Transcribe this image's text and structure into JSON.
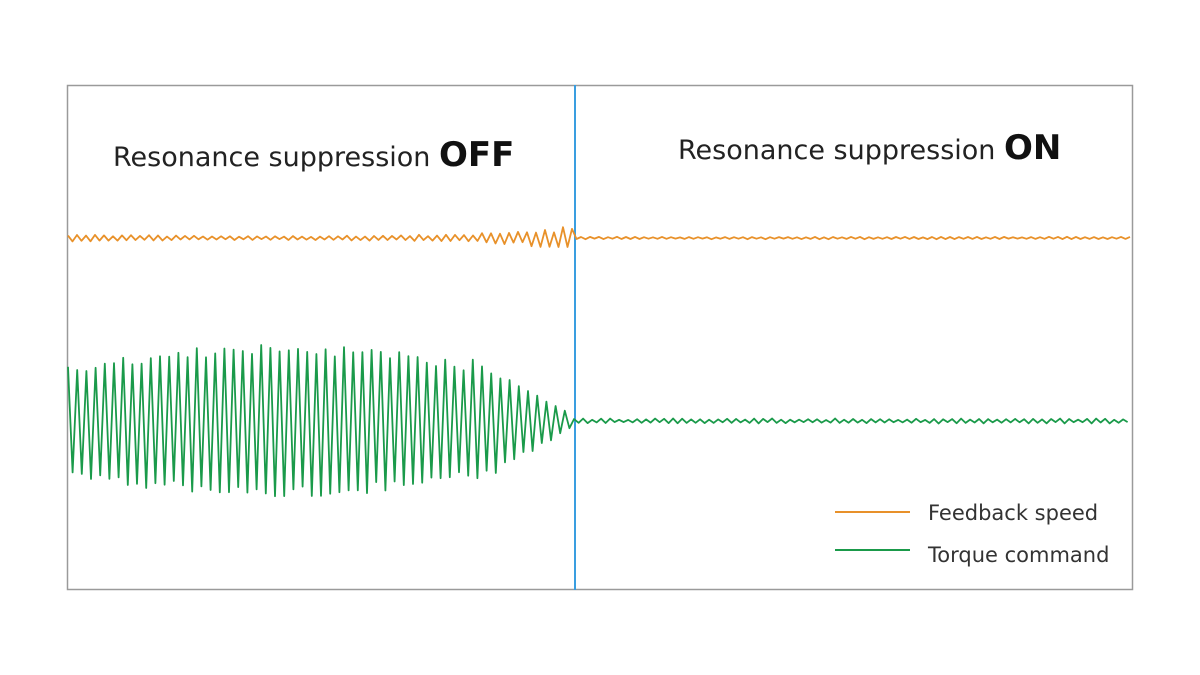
{
  "panels": [
    {
      "title": "Resonance suppression",
      "state": "OFF"
    },
    {
      "title": "Resonance suppression",
      "state": "ON"
    }
  ],
  "legend": [
    {
      "label": "Feedback speed"
    },
    {
      "label": "Torque command"
    }
  ]
}
